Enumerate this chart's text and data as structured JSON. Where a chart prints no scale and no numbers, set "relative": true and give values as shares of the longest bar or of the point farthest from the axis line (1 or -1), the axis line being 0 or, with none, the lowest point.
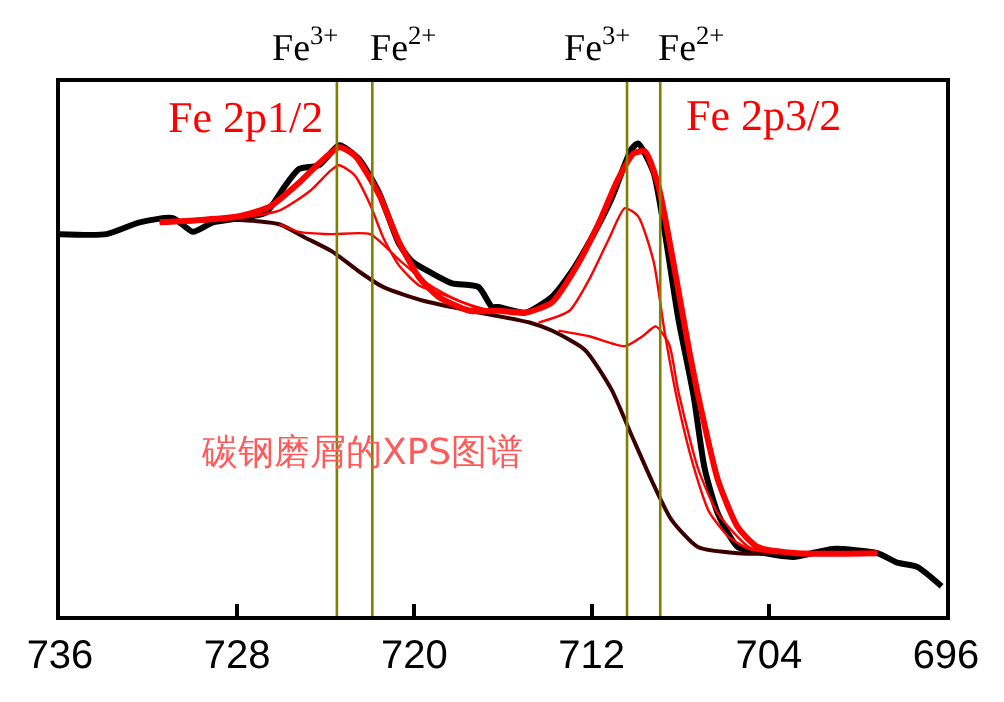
{
  "chart_data": {
    "type": "line",
    "relative": true,
    "xlim": [
      736,
      696
    ],
    "xticks": [
      736,
      728,
      720,
      712,
      704,
      696
    ],
    "marker": "none",
    "line_style": "solid",
    "series": [
      {
        "color": "#000000",
        "x": [
          736.0,
          733.9,
          732.4,
          730.9,
          730.0,
          729.1,
          727.9,
          726.7,
          725.8,
          725.2,
          724.3,
          723.4,
          722.5,
          721.6,
          720.7,
          720.1,
          719.2,
          718.3,
          717.1,
          716.5,
          716.2,
          715.0,
          713.8,
          712.9,
          712.0,
          711.1,
          710.2,
          709.9,
          709.2,
          708.7,
          708.1,
          707.4,
          706.9,
          706.3,
          705.4,
          704.2,
          702.9,
          701.1,
          699.1,
          698.2,
          697.3,
          696.2
        ],
        "values": [
          0.808,
          0.808,
          0.833,
          0.842,
          0.813,
          0.833,
          0.842,
          0.854,
          0.913,
          0.946,
          0.954,
          0.996,
          0.967,
          0.896,
          0.788,
          0.75,
          0.725,
          0.704,
          0.696,
          0.654,
          0.654,
          0.642,
          0.675,
          0.729,
          0.8,
          0.883,
          0.988,
          1.0,
          0.938,
          0.813,
          0.633,
          0.467,
          0.313,
          0.217,
          0.146,
          0.133,
          0.125,
          0.142,
          0.133,
          0.113,
          0.104,
          0.063
        ]
      },
      {
        "color": "#3a0000",
        "x": [
          731.5,
          727.9,
          726.1,
          724.9,
          723.7,
          722.5,
          721.4,
          719.6,
          717.5,
          714.8,
          713.8,
          712.3,
          711.1,
          710.2,
          709.3,
          708.4,
          707.2,
          705.4,
          699.1
        ],
        "values": [
          0.833,
          0.838,
          0.829,
          0.8,
          0.771,
          0.729,
          0.696,
          0.667,
          0.646,
          0.621,
          0.604,
          0.563,
          0.479,
          0.383,
          0.288,
          0.204,
          0.146,
          0.133,
          0.133
        ]
      },
      {
        "color": "#ff0000",
        "x": [
          727.9,
          726.1,
          724.7,
          723.8,
          723.4,
          722.7,
          722.0,
          721.4,
          720.7,
          719.8,
          718.4,
          717.1
        ],
        "values": [
          0.842,
          0.858,
          0.9,
          0.942,
          0.954,
          0.933,
          0.871,
          0.8,
          0.742,
          0.7,
          0.675,
          0.65
        ]
      },
      {
        "color": "#ff0000",
        "x": [
          726.1,
          725.2,
          723.8,
          722.0,
          720.7,
          719.3,
          718.0,
          716.6
        ],
        "values": [
          0.829,
          0.813,
          0.808,
          0.808,
          0.754,
          0.7,
          0.667,
          0.646
        ]
      },
      {
        "color": "#ff0000",
        "x": [
          714.4,
          713.0,
          712.1,
          711.2,
          710.5,
          709.9,
          709.2,
          708.7,
          708.1,
          707.4,
          706.7,
          705.8,
          704.9,
          703.6
        ],
        "values": [
          0.621,
          0.646,
          0.713,
          0.8,
          0.863,
          0.846,
          0.75,
          0.6,
          0.45,
          0.317,
          0.221,
          0.167,
          0.142,
          0.133
        ]
      },
      {
        "color": "#ff0000",
        "x": [
          713.5,
          712.1,
          710.5,
          709.7,
          709.1,
          708.5,
          708.1,
          707.2,
          706.3,
          704.9,
          703.6
        ],
        "values": [
          0.604,
          0.592,
          0.571,
          0.592,
          0.613,
          0.575,
          0.479,
          0.313,
          0.217,
          0.146,
          0.133
        ]
      },
      {
        "color": "#ff0000",
        "x": [
          731.5,
          729.7,
          727.9,
          726.5,
          725.2,
          724.3,
          723.4,
          722.7,
          721.6,
          720.7,
          719.8,
          718.9,
          717.5,
          716.2,
          715.0,
          713.8,
          712.6,
          711.7,
          710.8,
          710.1,
          709.6,
          709.0,
          708.3,
          707.6,
          707.0,
          706.3,
          705.4,
          704.5,
          702.7,
          699.1
        ],
        "values": [
          0.833,
          0.838,
          0.846,
          0.867,
          0.917,
          0.958,
          0.992,
          0.975,
          0.892,
          0.792,
          0.717,
          0.675,
          0.646,
          0.646,
          0.642,
          0.663,
          0.746,
          0.829,
          0.925,
          0.979,
          0.983,
          0.913,
          0.746,
          0.563,
          0.425,
          0.288,
          0.188,
          0.146,
          0.133,
          0.133
        ]
      }
    ],
    "ref_lines": [
      {
        "axis": "x",
        "value": 723.5,
        "label": "Fe$^{3+}$",
        "color": "#808000"
      },
      {
        "axis": "x",
        "value": 721.9,
        "label": "Fe$^{2+}$",
        "color": "#808000"
      },
      {
        "axis": "x",
        "value": 710.4,
        "label": "Fe$^{3+}$",
        "color": "#808000"
      },
      {
        "axis": "x",
        "value": 708.9,
        "label": "Fe$^{2+}$",
        "color": "#808000"
      }
    ],
    "annotations": [
      {
        "text": "Fe 2p1/2",
        "x": 723.4,
        "y": 0.996
      },
      {
        "text": "Fe 2p3/2",
        "x": 709.9,
        "y": 1.0
      },
      "碳钢磨屑的XPS图谱"
    ]
  }
}
